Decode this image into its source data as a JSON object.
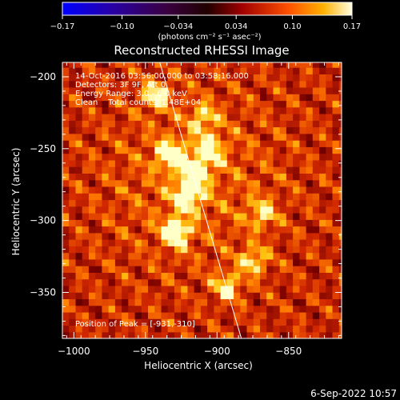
{
  "colorbar": {
    "ticks": [
      "-0.17",
      "-0.10",
      "-0.034",
      "0.034",
      "0.10",
      "0.17"
    ],
    "tick_values": [
      -0.17,
      -0.1,
      -0.034,
      0.034,
      0.1,
      0.17
    ],
    "range": [
      -0.17,
      0.17
    ],
    "units": "(photons cm⁻² s⁻¹ asec⁻²)"
  },
  "chart_data": {
    "type": "heatmap",
    "title": "Reconstructed RHESSI Image",
    "xlabel": "Heliocentric X (arcsec)",
    "ylabel": "Heliocentric Y (arcsec)",
    "xlim": [
      -1008,
      -813
    ],
    "ylim": [
      -382,
      -190
    ],
    "xticks": [
      -1000,
      -950,
      -900,
      -850
    ],
    "yticks": [
      -200,
      -250,
      -300,
      -350
    ],
    "xtick_labels": [
      "−1000",
      "−950",
      "−900",
      "−850"
    ],
    "ytick_labels": [
      "−200",
      "−250",
      "−300",
      "−350"
    ],
    "limb_line": [
      [
        -940,
        -190
      ],
      [
        -883,
        -382
      ]
    ],
    "peak": [
      -931,
      -310
    ],
    "bright_sources": [
      {
        "x": -918,
        "y": -268,
        "intensity": 1.0
      },
      {
        "x": -935,
        "y": -256,
        "intensity": 0.95
      },
      {
        "x": -923,
        "y": -285,
        "intensity": 0.9
      },
      {
        "x": -931,
        "y": -310,
        "intensity": 0.95
      },
      {
        "x": -908,
        "y": -252,
        "intensity": 0.8
      },
      {
        "x": -945,
        "y": -215,
        "intensity": 0.75
      },
      {
        "x": -895,
        "y": -348,
        "intensity": 0.75
      },
      {
        "x": -877,
        "y": -330,
        "intensity": 0.7
      },
      {
        "x": -871,
        "y": -297,
        "intensity": 0.65
      },
      {
        "x": -912,
        "y": -230,
        "intensity": 0.6
      }
    ],
    "info_lines": [
      "14-Oct-2016 03:56:00.000 to 03:58:16.000",
      "Detectors: 3F 9F, Att 0",
      "Energy Range: 3.0 - 6.0 keV",
      "Clean    Total counts: 1.48E+04"
    ],
    "peak_label": "Position of Peak = [-931,-310]"
  },
  "footer": {
    "date": "6-Sep-2022 10:57"
  }
}
